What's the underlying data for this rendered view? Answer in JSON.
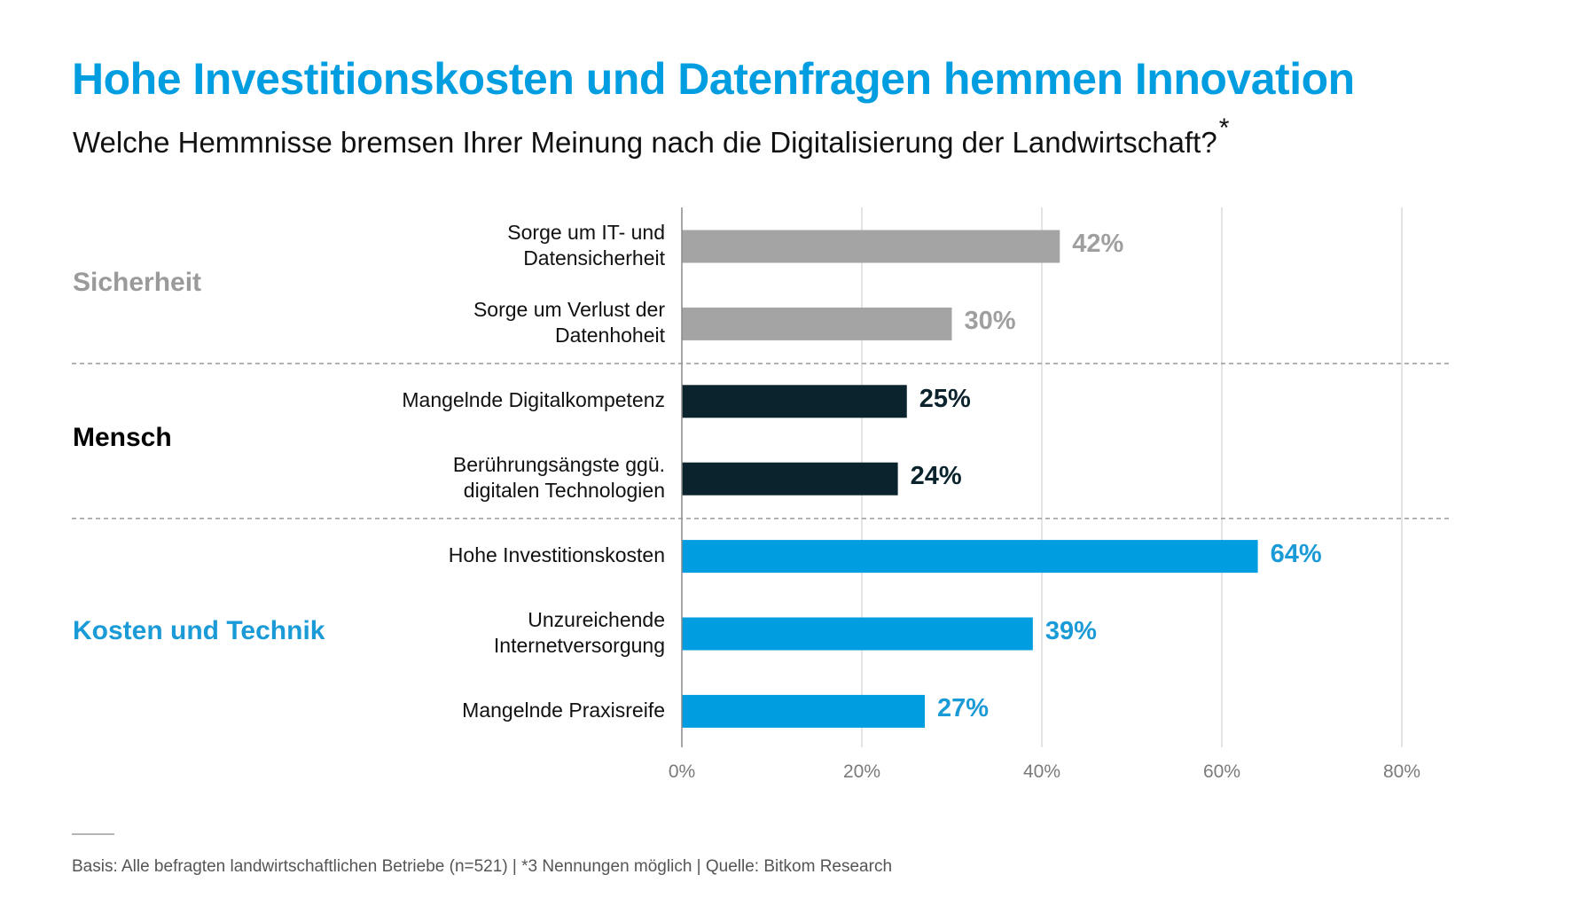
{
  "header": {
    "title": "Hohe Investitionskosten und Datenfragen hemmen Innovation",
    "subtitle": "Welche Hemmnisse bremsen Ihrer Meinung nach die Digitalisierung der Landwirtschaft?",
    "subtitle_marker": "*"
  },
  "colors": {
    "accent": "#009ee0",
    "gray": "#a4a4a4",
    "dark": "#0b232d",
    "gridline": "#dcdcdc",
    "axis": "#8a8a8a",
    "separator": "#9a9a9a"
  },
  "chart_data": {
    "type": "bar",
    "orientation": "horizontal",
    "title": "Hohe Investitionskosten und Datenfragen hemmen Innovation",
    "subtitle": "Welche Hemmnisse bremsen Ihrer Meinung nach die Digitalisierung der Landwirtschaft?*",
    "xlabel": "",
    "ylabel": "",
    "xlim": [
      0,
      80
    ],
    "x_ticks": [
      0,
      20,
      40,
      60,
      80
    ],
    "x_tick_labels": [
      "0%",
      "20%",
      "40%",
      "60%",
      "80%"
    ],
    "grid": true,
    "legend": "none",
    "groups": [
      {
        "name": "Sicherheit",
        "color": "#a4a4a4",
        "items": [
          {
            "label": "Sorge um IT- und\nDatensicherheit",
            "value": 42,
            "value_label": "42%"
          },
          {
            "label": "Sorge um Verlust der\nDatenhoheit",
            "value": 30,
            "value_label": "30%"
          }
        ]
      },
      {
        "name": "Mensch",
        "color": "#0b232d",
        "items": [
          {
            "label": "Mangelnde Digitalkompetenz",
            "value": 25,
            "value_label": "25%"
          },
          {
            "label": "Berührungsängste ggü.\ndigitalen Technologien",
            "value": 24,
            "value_label": "24%"
          }
        ]
      },
      {
        "name": "Kosten und Technik",
        "color": "#009ee0",
        "items": [
          {
            "label": "Hohe Investitionskosten",
            "value": 64,
            "value_label": "64%"
          },
          {
            "label": "Unzureichende\nInternetversorgung",
            "value": 39,
            "value_label": "39%"
          },
          {
            "label": "Mangelnde Praxisreife",
            "value": 27,
            "value_label": "27%"
          }
        ]
      }
    ]
  },
  "footer": {
    "note": "Basis: Alle befragten landwirtschaftlichen Betriebe (n=521) | *3 Nennungen möglich | Quelle: Bitkom Research"
  }
}
